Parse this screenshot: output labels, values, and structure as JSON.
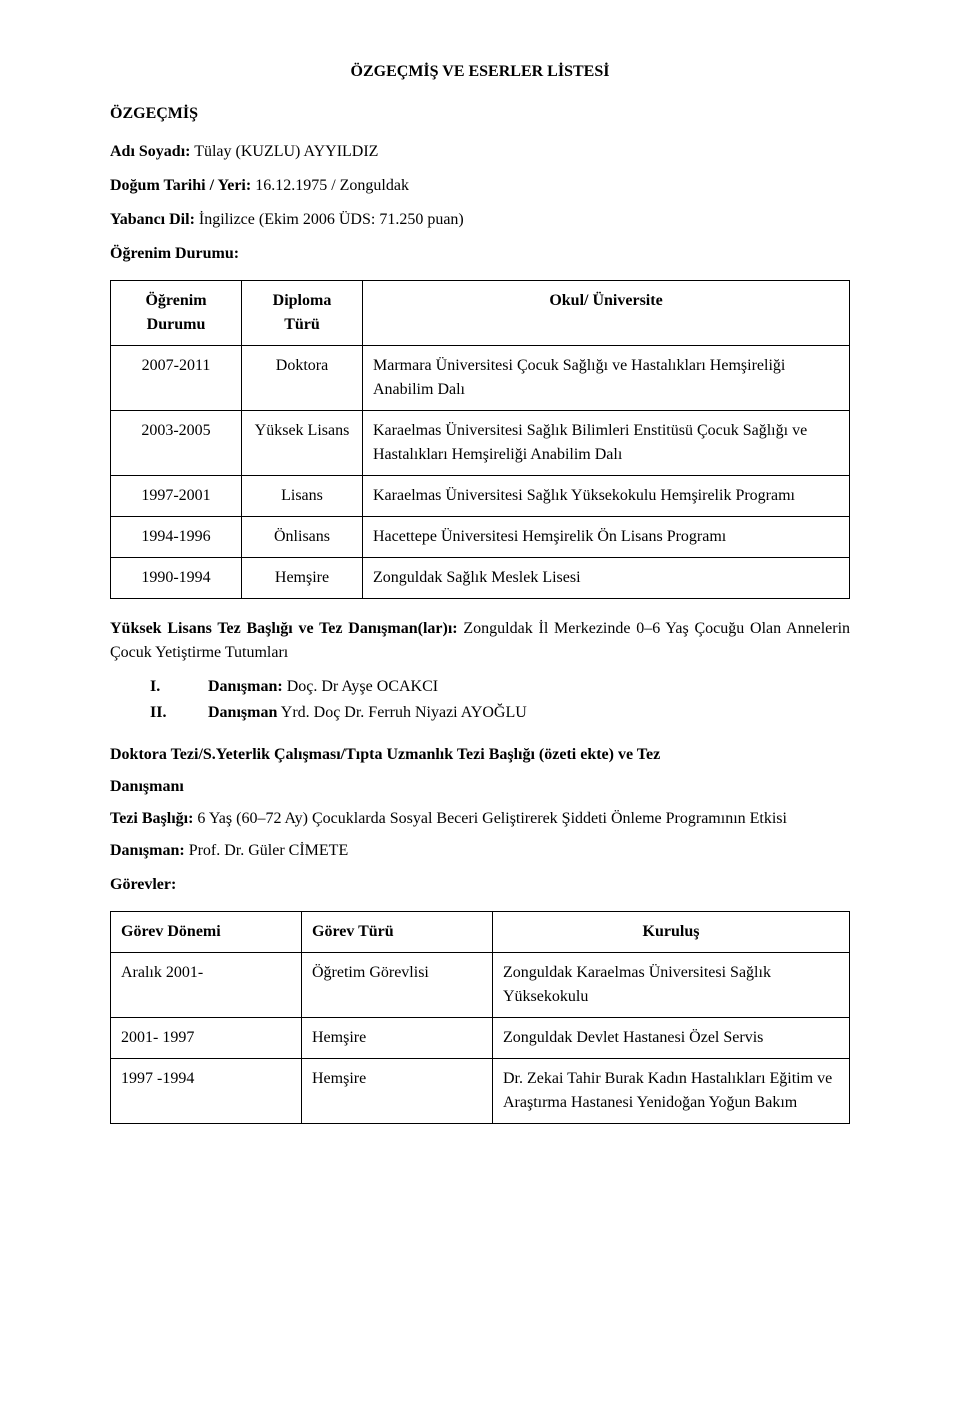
{
  "doc": {
    "title": "ÖZGEÇMİŞ VE ESERLER LİSTESİ",
    "heading_cv": "ÖZGEÇMİŞ",
    "name_label": "Adı Soyadı:",
    "name_value": "Tülay (KUZLU) AYYILDIZ",
    "dob_label": "Doğum Tarihi / Yeri:",
    "dob_value": "16.12.1975 / Zonguldak",
    "lang_label": "Yabancı Dil:",
    "lang_value": "İngilizce (Ekim 2006 ÜDS: 71.250 puan)",
    "edu_heading": "Öğrenim Durumu:"
  },
  "edu_table": {
    "columns": {
      "period_l1": "Öğrenim",
      "period_l2": "Durumu",
      "diploma_l1": "Diploma",
      "diploma_l2": "Türü",
      "school": "Okul/ Üniversite"
    },
    "rows": [
      {
        "period": "2007-2011",
        "diploma": "Doktora",
        "school": "Marmara Üniversitesi Çocuk Sağlığı ve Hastalıkları Hemşireliği Anabilim Dalı"
      },
      {
        "period": "2003-2005",
        "diploma": "Yüksek Lisans",
        "school": "Karaelmas Üniversitesi Sağlık Bilimleri Enstitüsü Çocuk Sağlığı ve Hastalıkları Hemşireliği Anabilim Dalı"
      },
      {
        "period": "1997-2001",
        "diploma": "Lisans",
        "school": "Karaelmas Üniversitesi Sağlık Yüksekokulu Hemşirelik Programı"
      },
      {
        "period": "1994-1996",
        "diploma": "Önlisans",
        "school": "Hacettepe Üniversitesi Hemşirelik Ön Lisans Programı"
      },
      {
        "period": "1990-1994",
        "diploma": "Hemşire",
        "school": "Zonguldak Sağlık Meslek Lisesi"
      }
    ]
  },
  "masters": {
    "label": "Yüksek Lisans Tez Başlığı ve Tez Danışman(lar)ı:",
    "value": "Zonguldak İl Merkezinde 0–6 Yaş Çocuğu Olan Annelerin Çocuk Yetiştirme Tutumları",
    "advisors": [
      {
        "num": "I.",
        "label": "Danışman:",
        "value": "Doç. Dr Ayşe OCAKCI"
      },
      {
        "num": "II.",
        "label": "Danışman",
        "value": "Yrd. Doç Dr. Ferruh Niyazi AYOĞLU"
      }
    ]
  },
  "phd": {
    "heading_l1": "Doktora Tezi/S.Yeterlik Çalışması/Tıpta Uzmanlık Tezi Başlığı (özeti ekte)  ve Tez",
    "heading_l2": "Danışmanı",
    "title_label": "Tezi Başlığı:",
    "title_value": "6 Yaş (60–72 Ay) Çocuklarda Sosyal Beceri Geliştirerek Şiddeti Önleme Programının Etkisi",
    "advisor_label": "Danışman:",
    "advisor_value": "Prof. Dr. Güler CİMETE"
  },
  "gorevler": {
    "heading": "Görevler:",
    "columns": {
      "period": "Görev Dönemi",
      "type": "Görev Türü",
      "org": "Kuruluş"
    },
    "rows": [
      {
        "period": "Aralık 2001-",
        "type": "Öğretim Görevlisi",
        "org": "Zonguldak Karaelmas Üniversitesi Sağlık Yüksekokulu"
      },
      {
        "period": "2001- 1997",
        "type": "Hemşire",
        "org": "Zonguldak Devlet Hastanesi Özel Servis"
      },
      {
        "period": "1997 -1994",
        "type": "Hemşire",
        "org": "Dr. Zekai Tahir Burak Kadın Hastalıkları Eğitim ve Araştırma Hastanesi Yenidoğan Yoğun Bakım"
      }
    ]
  }
}
